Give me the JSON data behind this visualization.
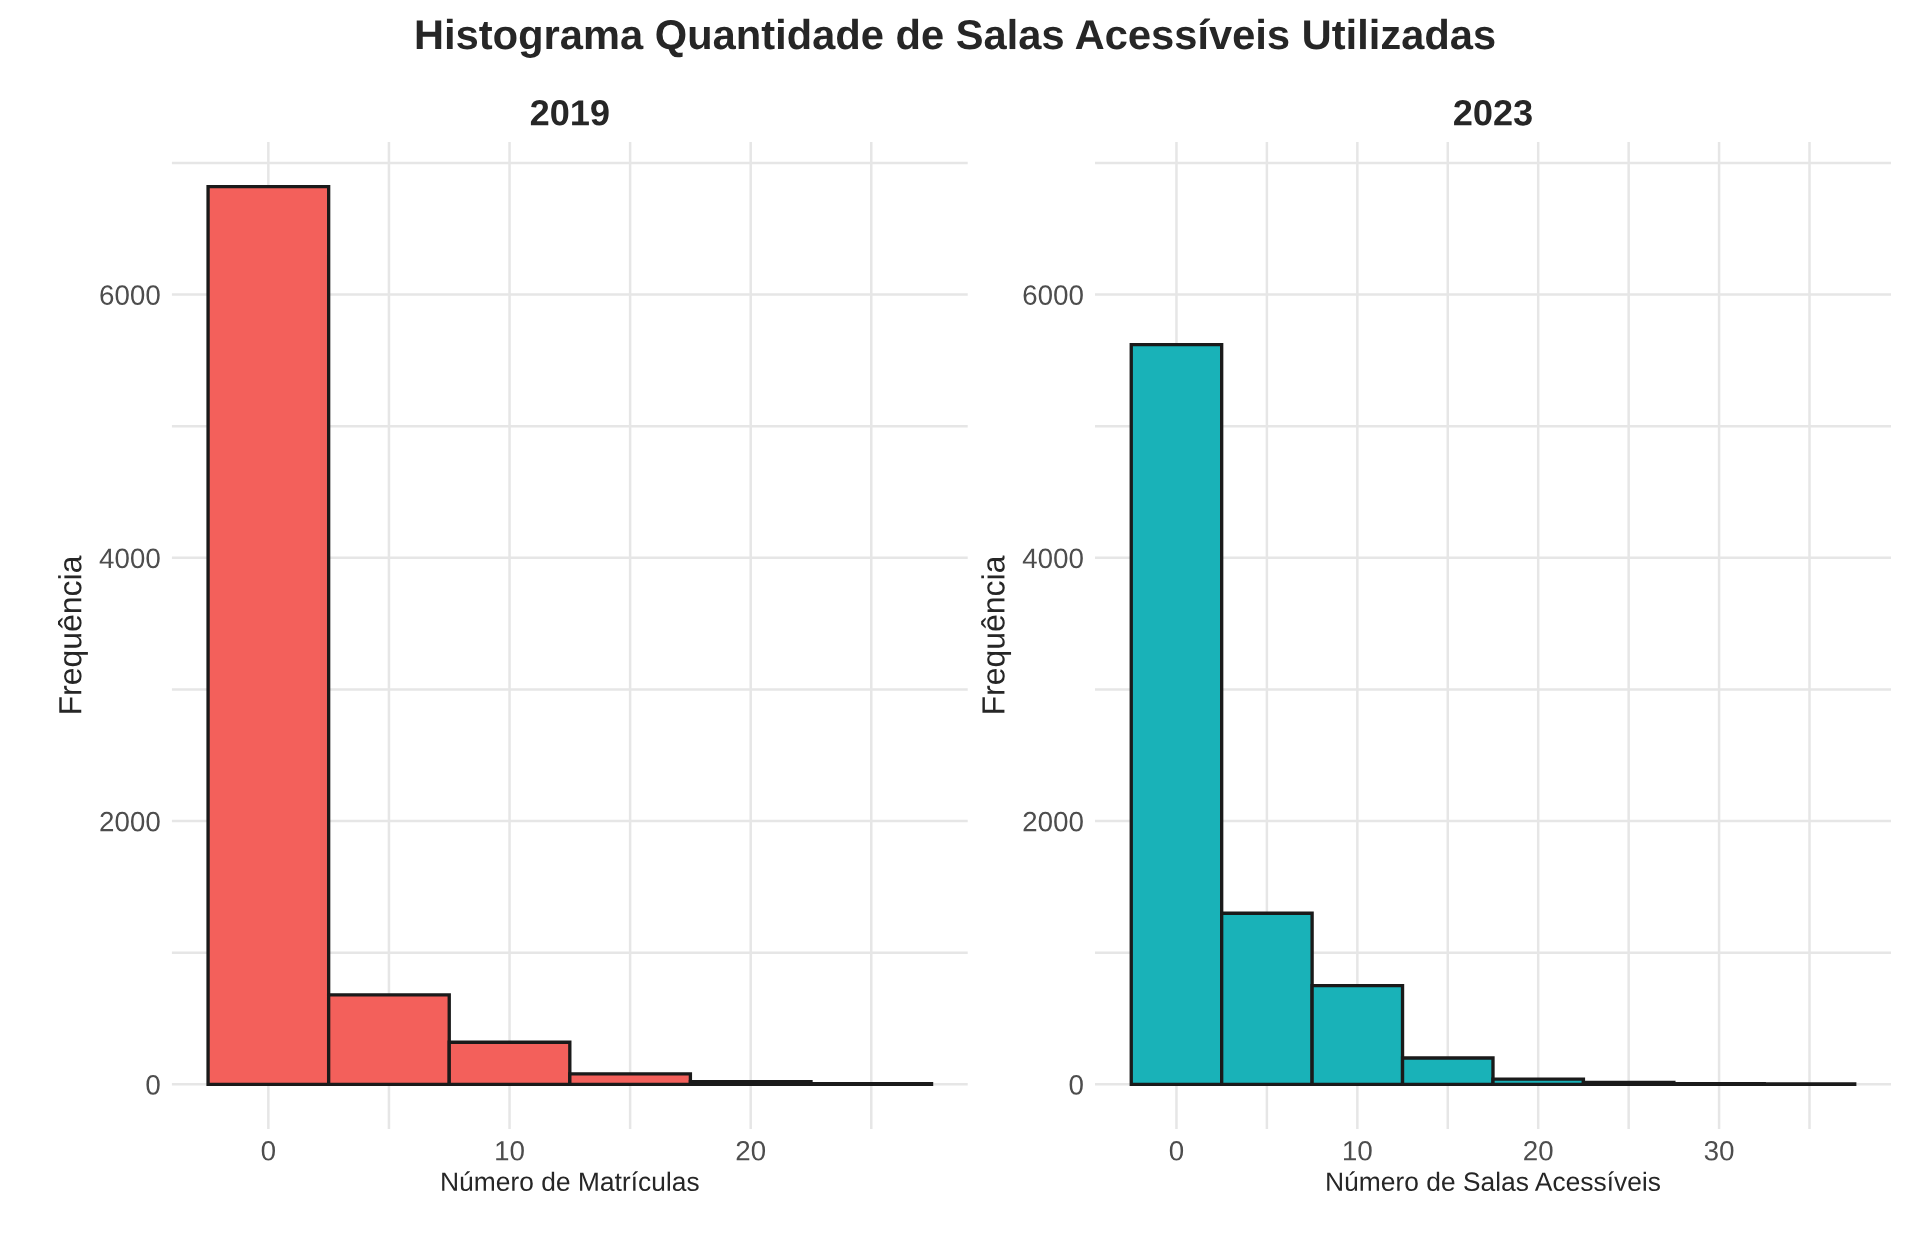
{
  "chart_data": [
    {
      "type": "histogram",
      "title": "2019",
      "xlabel": "Número de Matrículas",
      "ylabel": "Frequência",
      "annotations": [
        "Histograma Quantidade de Salas Acessíveis Utilizadas"
      ],
      "color": "#f3605b",
      "bins": [
        -2.5,
        2.5,
        7.5,
        12.5,
        17.5,
        22.5,
        27.5
      ],
      "values": [
        6820,
        680,
        320,
        80,
        20,
        5
      ],
      "xlim": [
        -4,
        29
      ],
      "xticks": [
        0,
        {
          "value": 5,
          "label": null
        },
        10,
        {
          "value": 15,
          "label": null
        },
        20,
        {
          "value": 25,
          "label": null
        }
      ],
      "ylim": [
        -340,
        7160
      ],
      "yticks": [
        0,
        {
          "value": 1000,
          "label": null
        },
        2000,
        {
          "value": 3000,
          "label": null
        },
        4000,
        {
          "value": 5000,
          "label": null
        },
        6000,
        {
          "value": 7000,
          "label": null
        }
      ],
      "grid": true
    },
    {
      "type": "histogram",
      "title": "2023",
      "xlabel": "Número de Salas Acessíveis",
      "ylabel": "Frequência",
      "color": "#19b2b8",
      "bins": [
        -2.5,
        2.5,
        7.5,
        12.5,
        17.5,
        22.5,
        27.5,
        32.5,
        37.5
      ],
      "values": [
        5620,
        1300,
        750,
        200,
        40,
        15,
        5,
        3
      ],
      "xlim": [
        -4.5,
        39.5
      ],
      "xticks": [
        0,
        {
          "value": 5,
          "label": null
        },
        10,
        {
          "value": 15,
          "label": null
        },
        20,
        {
          "value": 25,
          "label": null
        },
        30,
        {
          "value": 35,
          "label": null
        }
      ],
      "ylim": [
        -340,
        7160
      ],
      "yticks": [
        0,
        {
          "value": 1000,
          "label": null
        },
        2000,
        {
          "value": 3000,
          "label": null
        },
        4000,
        {
          "value": 5000,
          "label": null
        },
        6000,
        {
          "value": 7000,
          "label": null
        }
      ],
      "grid": true
    }
  ]
}
